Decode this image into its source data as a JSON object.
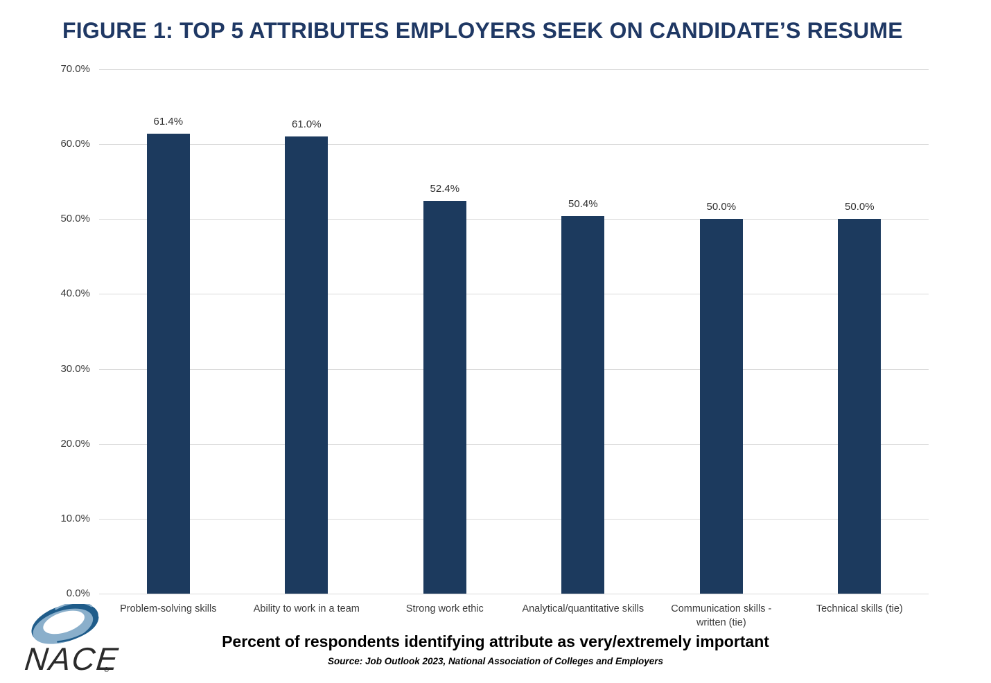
{
  "page": {
    "title": "FIGURE 1: TOP 5 ATTRIBUTES EMPLOYERS SEEK ON CANDIDATE’S RESUME",
    "caption": "Percent of respondents identifying attribute as very/extremely important",
    "source": "Source: Job Outlook 2023, National Association of Colleges and Employers"
  },
  "logo": {
    "name": "NACE",
    "registered_mark": "®"
  },
  "chart_data": {
    "type": "bar",
    "title": "FIGURE 1: TOP 5 ATTRIBUTES EMPLOYERS SEEK ON CANDIDATE’S RESUME",
    "categories": [
      "Problem-solving skills",
      "Ability to work in a team",
      "Strong work ethic",
      "Analytical/quantitative skills",
      "Communication skills -\nwritten (tie)",
      "Technical skills (tie)"
    ],
    "values": [
      61.4,
      61.0,
      52.4,
      50.4,
      50.0,
      50.0
    ],
    "value_labels": [
      "61.4%",
      "61.0%",
      "52.4%",
      "50.4%",
      "50.0%",
      "50.0%"
    ],
    "xlabel": "Percent of respondents identifying attribute as very/extremely important",
    "ylabel": "",
    "ylim": [
      0,
      70
    ],
    "ytick_step": 10,
    "ytick_labels": [
      "0.0%",
      "10.0%",
      "20.0%",
      "30.0%",
      "40.0%",
      "50.0%",
      "60.0%",
      "70.0%"
    ],
    "grid": true,
    "legend": false,
    "bar_color": "#1c3a5e",
    "gridline_color": "#d9d9d9",
    "axis_text_color": "#3a3a3a"
  },
  "colors": {
    "background": "#ffffff",
    "title_text": "#1f3864",
    "logo_dark": "#1f5c8a",
    "logo_light": "#8aafcb",
    "logo_text": "#2b2b2b"
  }
}
